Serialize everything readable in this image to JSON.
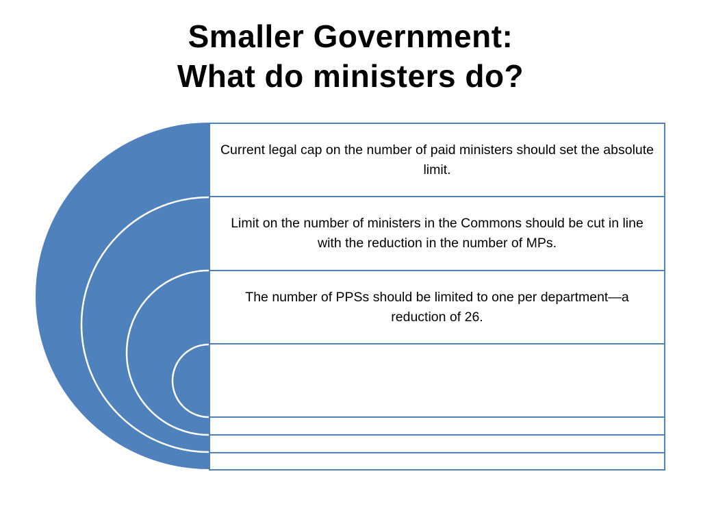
{
  "title": {
    "line1": "Smaller Government:",
    "line2": "What do ministers do?"
  },
  "items": [
    "Current legal cap on the number of paid ministers should set the absolute limit.",
    "Limit on the number of ministers in the Commons should be cut in line with the reduction in the number of MPs.",
    "The number of PPSs should be limited to one per department—a reduction of 26.",
    ""
  ],
  "colors": {
    "accent": "#4f81bd",
    "arc_line": "#ffffff",
    "box_fill": "#ffffff"
  }
}
